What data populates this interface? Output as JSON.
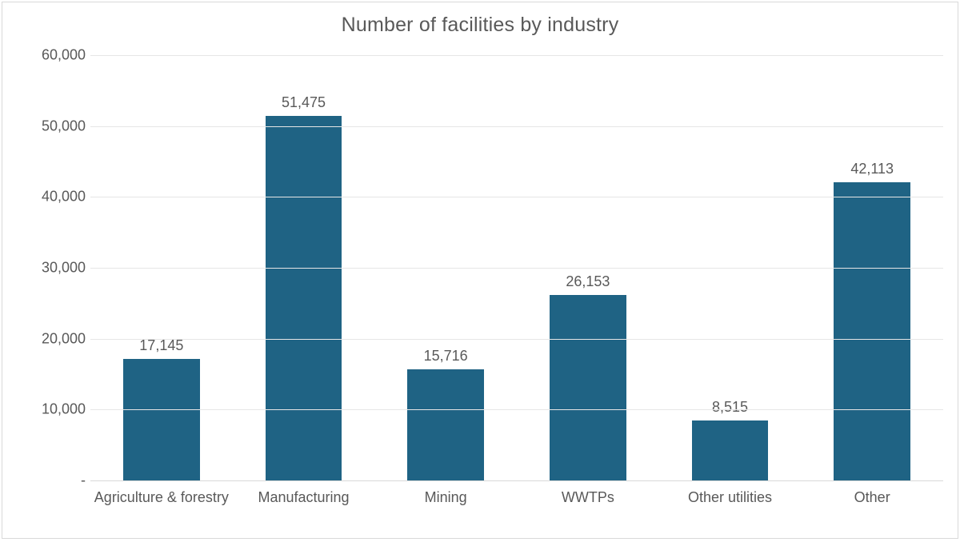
{
  "chart": {
    "type": "bar",
    "title": "Number of facilities by industry",
    "title_fontsize": 25,
    "title_color": "#595959",
    "background_color": "#ffffff",
    "border_color": "#d9d9d9",
    "grid_color": "#e6e6e6",
    "baseline_color": "#d9d9d9",
    "axis_label_color": "#595959",
    "axis_fontsize": 18,
    "data_label_fontsize": 18,
    "x_label_fontsize": 18,
    "bar_color": "#1f6384",
    "bar_width_pct": 54,
    "ylim": [
      0,
      60000
    ],
    "ytick_step": 10000,
    "yticks": [
      {
        "value": 0,
        "label": " -   "
      },
      {
        "value": 10000,
        "label": " 10,000"
      },
      {
        "value": 20000,
        "label": " 20,000"
      },
      {
        "value": 30000,
        "label": " 30,000"
      },
      {
        "value": 40000,
        "label": " 40,000"
      },
      {
        "value": 50000,
        "label": " 50,000"
      },
      {
        "value": 60000,
        "label": " 60,000"
      }
    ],
    "categories": [
      "Agriculture & forestry",
      "Manufacturing",
      "Mining",
      "WWTPs",
      "Other utilities",
      "Other"
    ],
    "values": [
      17145,
      51475,
      15716,
      26153,
      8515,
      42113
    ],
    "value_labels": [
      "17,145",
      "51,475",
      "15,716",
      "26,153",
      "8,515",
      "42,113"
    ]
  }
}
